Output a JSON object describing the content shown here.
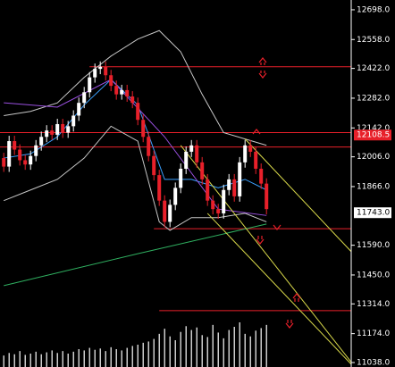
{
  "chart_data": {
    "type": "candlestick",
    "ylim": [
      11017,
      12744
    ],
    "yticks": [
      {
        "value": 12698,
        "label": "12698.0"
      },
      {
        "value": 12558,
        "label": "12558.0"
      },
      {
        "value": 12422,
        "label": "12422.0"
      },
      {
        "value": 12282,
        "label": "12282.0"
      },
      {
        "value": 12142,
        "label": "12142.0"
      },
      {
        "value": 12006,
        "label": "12006.0"
      },
      {
        "value": 11866,
        "label": "11866.0"
      },
      {
        "value": 11590,
        "label": "11590.0"
      },
      {
        "value": 11450,
        "label": "11450.0"
      },
      {
        "value": 11314,
        "label": "11314.0"
      },
      {
        "value": 11174,
        "label": "11174.0"
      },
      {
        "value": 11038,
        "label": "11038.0"
      }
    ],
    "xlim": [
      -0.7,
      64.8
    ],
    "up_color": "#ffffff",
    "down_color": "#e8202a",
    "candles": {
      "open": [
        12000,
        11960,
        12080,
        12040,
        11990,
        11970,
        12010,
        12060,
        12100,
        12130,
        12110,
        12160,
        12120,
        12150,
        12200,
        12260,
        12310,
        12380,
        12420,
        12430,
        12390,
        12340,
        12300,
        12320,
        12290,
        12260,
        12180,
        12100,
        12010,
        11920,
        11800,
        11700,
        11780,
        11860,
        11950,
        12030,
        12060,
        11980,
        11900,
        11800,
        11760,
        11740,
        11850,
        11900,
        11820,
        11980,
        12060,
        12030,
        11950,
        11880
      ],
      "high": [
        12025,
        12105,
        12105,
        12065,
        12015,
        12035,
        12085,
        12125,
        12155,
        12155,
        12185,
        12185,
        12175,
        12225,
        12285,
        12335,
        12405,
        12445,
        12455,
        12455,
        12415,
        12365,
        12345,
        12345,
        12315,
        12285,
        12205,
        12125,
        12035,
        11945,
        11825,
        11805,
        11885,
        11975,
        12055,
        12085,
        12085,
        12005,
        11925,
        11825,
        11785,
        11875,
        11925,
        11925,
        12005,
        12085,
        12085,
        12055,
        11975,
        11905
      ],
      "low": [
        11935,
        11935,
        12015,
        11965,
        11945,
        11945,
        11985,
        12035,
        12075,
        12085,
        12085,
        12095,
        12095,
        12125,
        12175,
        12235,
        12285,
        12355,
        12395,
        12365,
        12315,
        12275,
        12275,
        12265,
        12235,
        12155,
        12075,
        11985,
        11895,
        11775,
        11675,
        11675,
        11755,
        11835,
        11925,
        12005,
        11955,
        11875,
        11775,
        11735,
        11715,
        11715,
        11825,
        11795,
        11795,
        11955,
        12005,
        11925,
        11855,
        11735
      ],
      "close": [
        11960,
        12080,
        12040,
        11990,
        11970,
        12010,
        12060,
        12100,
        12130,
        12110,
        12160,
        12120,
        12150,
        12200,
        12260,
        12310,
        12380,
        12420,
        12430,
        12390,
        12340,
        12300,
        12320,
        12290,
        12260,
        12180,
        12100,
        12010,
        11920,
        11800,
        11700,
        11780,
        11860,
        11950,
        12030,
        12060,
        11980,
        11900,
        11800,
        11760,
        11740,
        11850,
        11900,
        11820,
        11980,
        12060,
        12030,
        11950,
        11880,
        11760
      ]
    },
    "volume": [
      18,
      22,
      20,
      25,
      19,
      21,
      24,
      20,
      23,
      26,
      22,
      25,
      21,
      24,
      28,
      26,
      30,
      27,
      29,
      25,
      31,
      28,
      26,
      30,
      33,
      35,
      38,
      40,
      44,
      52,
      60,
      48,
      42,
      55,
      64,
      58,
      62,
      50,
      47,
      66,
      54,
      45,
      58,
      63,
      70,
      52,
      48,
      57,
      61,
      66
    ],
    "volume_color": "#ffffff",
    "lines": [
      {
        "color": "#c8c8c8",
        "x": [
          0,
          5,
          10,
          15,
          20,
          25,
          29,
          33,
          37,
          41,
          45,
          49
        ],
        "values": [
          12200,
          12220,
          12260,
          12380,
          12480,
          12560,
          12600,
          12500,
          12300,
          12120,
          12090,
          12060
        ]
      },
      {
        "color": "#c8c8c8",
        "x": [
          0,
          5,
          10,
          15,
          20,
          25,
          29,
          31,
          35,
          40,
          45,
          49
        ],
        "values": [
          11800,
          11850,
          11900,
          12000,
          12150,
          12080,
          11700,
          11660,
          11720,
          11720,
          11740,
          11700
        ]
      },
      {
        "color": "#3aa0ff",
        "x": [
          0,
          5,
          10,
          15,
          20,
          25,
          30,
          35,
          40,
          45,
          49
        ],
        "values": [
          12000,
          12020,
          12100,
          12250,
          12370,
          12250,
          11900,
          11900,
          11860,
          11900,
          11850
        ]
      },
      {
        "color": "#9a50e0",
        "x": [
          0,
          10,
          20,
          30,
          40,
          49
        ],
        "values": [
          12260,
          12240,
          12370,
          12100,
          11760,
          11730
        ]
      },
      {
        "color": "#2fb060",
        "x": [
          0,
          25,
          49
        ],
        "values": [
          11400,
          11550,
          11690
        ]
      },
      {
        "color": "#d8d84a",
        "x": [
          33,
          64.8
        ],
        "values": [
          12060,
          11040
        ]
      },
      {
        "color": "#d8d84a",
        "x": [
          38,
          64.8
        ],
        "values": [
          11740,
          11030
        ]
      },
      {
        "color": "#d8d84a",
        "x": [
          45,
          64.8
        ],
        "values": [
          12090,
          11560
        ]
      }
    ],
    "levels": [
      {
        "color": "#e8202a",
        "x": [
          16,
          64.8
        ],
        "value": 12430
      },
      {
        "color": "#e8202a",
        "x": [
          -0.7,
          64.8
        ],
        "value": 12120
      },
      {
        "color": "#e8202a",
        "x": [
          -0.7,
          64.8
        ],
        "value": 12052
      },
      {
        "color": "#e8202a",
        "x": [
          28,
          64.8
        ],
        "value": 11668
      },
      {
        "color": "#e8202a",
        "x": [
          29,
          64.8
        ],
        "value": 11282
      }
    ],
    "marker_price": {
      "value": 12108.5,
      "label": "12108.5",
      "color": "#e8202a"
    },
    "last_price": {
      "value": 11743,
      "label": "11743.0",
      "color": "#ffffff"
    }
  }
}
